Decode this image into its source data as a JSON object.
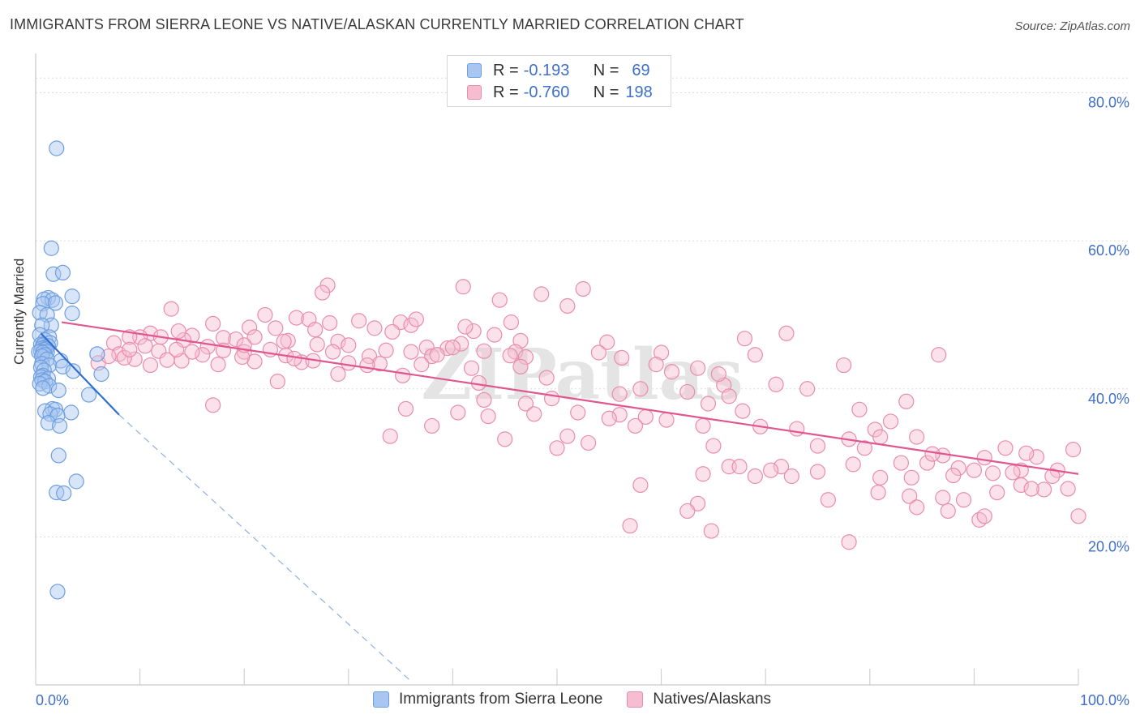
{
  "title": "IMMIGRANTS FROM SIERRA LEONE VS NATIVE/ALASKAN CURRENTLY MARRIED CORRELATION CHART",
  "source": "Source: ZipAtlas.com",
  "legend": {
    "rows": [
      {
        "r_label": "R =",
        "r_value": "-0.193",
        "n_label": "N =",
        "n_value": "69",
        "color": "#a9c6f0",
        "border": "#6d9ee0"
      },
      {
        "r_label": "R =",
        "r_value": "-0.760",
        "n_label": "N =",
        "n_value": "198",
        "color": "#f6bcd0",
        "border": "#e98cae"
      }
    ]
  },
  "chart_data": {
    "type": "scatter",
    "xlabel": "",
    "ylabel": "Currently Married",
    "xlim": [
      0,
      100
    ],
    "ylim": [
      0,
      84
    ],
    "x_tick_labels": [
      "0.0%",
      "100.0%"
    ],
    "y_tick_labels": [
      "20.0%",
      "40.0%",
      "60.0%",
      "80.0%"
    ],
    "y_ticks": [
      20,
      40,
      60,
      80
    ],
    "grid": true,
    "watermark": "ZIPatlas",
    "series": [
      {
        "name": "Immigrants from Sierra Leone",
        "color": "#a9c6f0",
        "stroke": "#6d9ee0",
        "trend_color": "#2f6fd0",
        "trend": {
          "x0": 0.5,
          "y0": 47.5,
          "x1": 8,
          "y1": 36.5,
          "x_dash_end": 36,
          "y_dash_end": 0.5
        },
        "points": [
          [
            2.0,
            72.5
          ],
          [
            1.5,
            59.0
          ],
          [
            1.7,
            55.5
          ],
          [
            2.6,
            55.7
          ],
          [
            3.5,
            52.5
          ],
          [
            1.2,
            52.3
          ],
          [
            0.8,
            52.1
          ],
          [
            1.6,
            52.0
          ],
          [
            0.7,
            51.5
          ],
          [
            1.9,
            51.6
          ],
          [
            0.4,
            50.3
          ],
          [
            3.5,
            50.2
          ],
          [
            1.1,
            50.0
          ],
          [
            1.5,
            48.6
          ],
          [
            0.6,
            48.6
          ],
          [
            0.4,
            47.3
          ],
          [
            1.3,
            47.0
          ],
          [
            0.9,
            46.6
          ],
          [
            1.4,
            46.2
          ],
          [
            0.5,
            46.0
          ],
          [
            0.7,
            45.9
          ],
          [
            1.2,
            45.8
          ],
          [
            0.9,
            45.6
          ],
          [
            0.6,
            45.5
          ],
          [
            1.0,
            45.4
          ],
          [
            0.8,
            45.3
          ],
          [
            0.5,
            45.1
          ],
          [
            0.3,
            45.0
          ],
          [
            1.1,
            45.0
          ],
          [
            0.7,
            44.9
          ],
          [
            0.9,
            44.6
          ],
          [
            0.6,
            44.4
          ],
          [
            5.9,
            44.7
          ],
          [
            1.1,
            44.0
          ],
          [
            2.4,
            43.8
          ],
          [
            0.6,
            43.4
          ],
          [
            1.3,
            43.2
          ],
          [
            0.5,
            42.9
          ],
          [
            2.6,
            43.0
          ],
          [
            0.8,
            42.5
          ],
          [
            3.6,
            42.4
          ],
          [
            6.3,
            42.0
          ],
          [
            0.7,
            41.8
          ],
          [
            0.5,
            41.6
          ],
          [
            1.2,
            41.4
          ],
          [
            0.6,
            41.2
          ],
          [
            0.9,
            41.0
          ],
          [
            0.4,
            40.7
          ],
          [
            1.3,
            40.4
          ],
          [
            0.7,
            40.1
          ],
          [
            2.2,
            39.8
          ],
          [
            5.1,
            39.2
          ],
          [
            1.6,
            37.3
          ],
          [
            1.9,
            37.2
          ],
          [
            0.9,
            37.0
          ],
          [
            3.4,
            36.8
          ],
          [
            1.4,
            36.6
          ],
          [
            2.1,
            36.4
          ],
          [
            1.2,
            35.4
          ],
          [
            2.3,
            35.0
          ],
          [
            2.2,
            31.0
          ],
          [
            3.9,
            27.5
          ],
          [
            2.0,
            26.0
          ],
          [
            2.7,
            25.9
          ],
          [
            2.1,
            12.6
          ]
        ]
      },
      {
        "name": "Natives/Alaskans",
        "color": "#f6bcd0",
        "stroke": "#e98cae",
        "trend_color": "#e0578f",
        "trend": {
          "x0": 2.5,
          "y0": 49.0,
          "x1": 100,
          "y1": 28.5
        },
        "points": [
          [
            28.0,
            54.0
          ],
          [
            41.0,
            53.8
          ],
          [
            52.5,
            53.5
          ],
          [
            27.5,
            53.0
          ],
          [
            48.5,
            52.8
          ],
          [
            44.5,
            52.0
          ],
          [
            51.0,
            51.2
          ],
          [
            13.0,
            50.8
          ],
          [
            22.0,
            50.0
          ],
          [
            25.0,
            49.6
          ],
          [
            26.2,
            49.4
          ],
          [
            31.0,
            49.2
          ],
          [
            35.0,
            49.0
          ],
          [
            36.0,
            48.6
          ],
          [
            17.0,
            48.8
          ],
          [
            23.0,
            48.2
          ],
          [
            20.5,
            48.3
          ],
          [
            26.8,
            48.0
          ],
          [
            34.2,
            47.7
          ],
          [
            42.0,
            47.8
          ],
          [
            72.0,
            47.5
          ],
          [
            44.0,
            47.3
          ],
          [
            21.0,
            47.0
          ],
          [
            11.0,
            47.5
          ],
          [
            10.0,
            47.0
          ],
          [
            12.0,
            47.0
          ],
          [
            9.0,
            47.0
          ],
          [
            15.0,
            47.2
          ],
          [
            18.0,
            46.9
          ],
          [
            19.2,
            46.7
          ],
          [
            14.2,
            46.6
          ],
          [
            24.2,
            46.5
          ],
          [
            46.5,
            46.5
          ],
          [
            68.0,
            46.8
          ],
          [
            29.0,
            46.4
          ],
          [
            54.8,
            46.3
          ],
          [
            7.5,
            46.2
          ],
          [
            40.8,
            46.1
          ],
          [
            27.0,
            46.0
          ],
          [
            30.0,
            45.9
          ],
          [
            10.5,
            45.8
          ],
          [
            16.5,
            45.7
          ],
          [
            37.5,
            45.6
          ],
          [
            39.5,
            45.5
          ],
          [
            40.0,
            45.6
          ],
          [
            22.5,
            45.3
          ],
          [
            18.0,
            45.2
          ],
          [
            11.8,
            45.1
          ],
          [
            20.0,
            45.0
          ],
          [
            28.5,
            45.0
          ],
          [
            36.0,
            45.0
          ],
          [
            43.0,
            45.1
          ],
          [
            46.0,
            45.0
          ],
          [
            54.0,
            44.9
          ],
          [
            60.0,
            44.9
          ],
          [
            69.0,
            44.6
          ],
          [
            8.0,
            44.7
          ],
          [
            16.0,
            44.6
          ],
          [
            24.0,
            44.5
          ],
          [
            32.0,
            44.4
          ],
          [
            38.0,
            44.4
          ],
          [
            47.0,
            44.3
          ],
          [
            56.2,
            44.2
          ],
          [
            86.6,
            44.6
          ],
          [
            9.5,
            44.0
          ],
          [
            14.0,
            43.8
          ],
          [
            21.0,
            43.7
          ],
          [
            25.5,
            43.6
          ],
          [
            30.0,
            43.5
          ],
          [
            33.0,
            43.4
          ],
          [
            37.0,
            43.3
          ],
          [
            46.5,
            43.0
          ],
          [
            6.0,
            43.5
          ],
          [
            11.0,
            43.2
          ],
          [
            77.5,
            43.2
          ],
          [
            63.5,
            42.8
          ],
          [
            29.0,
            42.0
          ],
          [
            61.0,
            42.3
          ],
          [
            35.2,
            41.8
          ],
          [
            49.0,
            41.5
          ],
          [
            23.2,
            41.0
          ],
          [
            42.5,
            40.8
          ],
          [
            71.0,
            40.6
          ],
          [
            66.0,
            40.5
          ],
          [
            43.0,
            38.5
          ],
          [
            58.0,
            40.0
          ],
          [
            74.0,
            40.0
          ],
          [
            62.5,
            39.6
          ],
          [
            56.0,
            39.3
          ],
          [
            66.5,
            39.0
          ],
          [
            49.5,
            38.7
          ],
          [
            64.5,
            38.0
          ],
          [
            83.5,
            38.3
          ],
          [
            79.0,
            37.2
          ],
          [
            67.8,
            37.0
          ],
          [
            52.0,
            36.8
          ],
          [
            17.0,
            37.8
          ],
          [
            47.0,
            38.0
          ],
          [
            35.5,
            37.3
          ],
          [
            40.5,
            36.8
          ],
          [
            47.8,
            36.6
          ],
          [
            56.0,
            36.5
          ],
          [
            58.5,
            36.2
          ],
          [
            55.0,
            36.0
          ],
          [
            43.4,
            36.3
          ],
          [
            60.5,
            35.8
          ],
          [
            38.0,
            35.0
          ],
          [
            57.5,
            35.0
          ],
          [
            64.0,
            35.0
          ],
          [
            69.5,
            34.9
          ],
          [
            73.0,
            34.6
          ],
          [
            80.5,
            34.5
          ],
          [
            82.0,
            35.6
          ],
          [
            34.0,
            33.6
          ],
          [
            45.0,
            33.2
          ],
          [
            51.0,
            33.6
          ],
          [
            53.0,
            32.7
          ],
          [
            65.0,
            32.3
          ],
          [
            75.0,
            32.3
          ],
          [
            78.0,
            33.2
          ],
          [
            81.0,
            33.5
          ],
          [
            84.5,
            33.5
          ],
          [
            50.0,
            32.0
          ],
          [
            79.5,
            32.0
          ],
          [
            93.0,
            32.0
          ],
          [
            87.0,
            31.0
          ],
          [
            99.5,
            31.8
          ],
          [
            91.0,
            30.7
          ],
          [
            96.0,
            30.8
          ],
          [
            95.0,
            31.3
          ],
          [
            78.4,
            29.8
          ],
          [
            71.5,
            29.5
          ],
          [
            85.5,
            30.0
          ],
          [
            86.0,
            31.2
          ],
          [
            70.5,
            29.0
          ],
          [
            75.0,
            28.8
          ],
          [
            88.5,
            29.3
          ],
          [
            83.0,
            30.0
          ],
          [
            69.0,
            28.2
          ],
          [
            72.5,
            28.2
          ],
          [
            94.5,
            29.0
          ],
          [
            98.0,
            29.0
          ],
          [
            64.0,
            28.5
          ],
          [
            90.0,
            29.0
          ],
          [
            81.0,
            28.0
          ],
          [
            91.8,
            28.6
          ],
          [
            97.5,
            28.2
          ],
          [
            84.0,
            28.0
          ],
          [
            93.7,
            28.7
          ],
          [
            96.7,
            26.4
          ],
          [
            58.0,
            27.0
          ],
          [
            66.5,
            29.5
          ],
          [
            67.5,
            29.5
          ],
          [
            88.0,
            28.3
          ],
          [
            80.8,
            26.0
          ],
          [
            94.5,
            27.0
          ],
          [
            95.5,
            26.5
          ],
          [
            99.0,
            26.5
          ],
          [
            83.8,
            25.5
          ],
          [
            92.2,
            26.0
          ],
          [
            87.0,
            25.3
          ],
          [
            89.0,
            25.0
          ],
          [
            76.0,
            25.0
          ],
          [
            84.5,
            24.0
          ],
          [
            63.5,
            24.5
          ],
          [
            62.5,
            23.5
          ],
          [
            87.5,
            23.5
          ],
          [
            90.5,
            22.3
          ],
          [
            91.0,
            22.8
          ],
          [
            100.0,
            22.8
          ],
          [
            57.0,
            21.5
          ],
          [
            64.8,
            20.8
          ],
          [
            78.0,
            19.3
          ],
          [
            17.5,
            43.3
          ],
          [
            26.6,
            43.8
          ],
          [
            31.8,
            43.2
          ],
          [
            41.8,
            42.8
          ],
          [
            19.8,
            44.3
          ],
          [
            24.8,
            44.1
          ],
          [
            12.6,
            43.9
          ],
          [
            33.6,
            45.2
          ],
          [
            45.5,
            44.5
          ],
          [
            59.5,
            43.3
          ],
          [
            65.5,
            42.0
          ],
          [
            38.5,
            44.6
          ],
          [
            15.0,
            45.0
          ],
          [
            13.5,
            45.3
          ],
          [
            8.5,
            44.2
          ],
          [
            7.0,
            44.4
          ],
          [
            9.0,
            45.3
          ],
          [
            28.2,
            48.9
          ],
          [
            32.5,
            48.2
          ],
          [
            36.5,
            49.4
          ],
          [
            41.2,
            48.4
          ],
          [
            45.6,
            49.0
          ],
          [
            13.7,
            47.8
          ],
          [
            20.0,
            45.9
          ],
          [
            23.8,
            46.4
          ]
        ]
      }
    ]
  }
}
